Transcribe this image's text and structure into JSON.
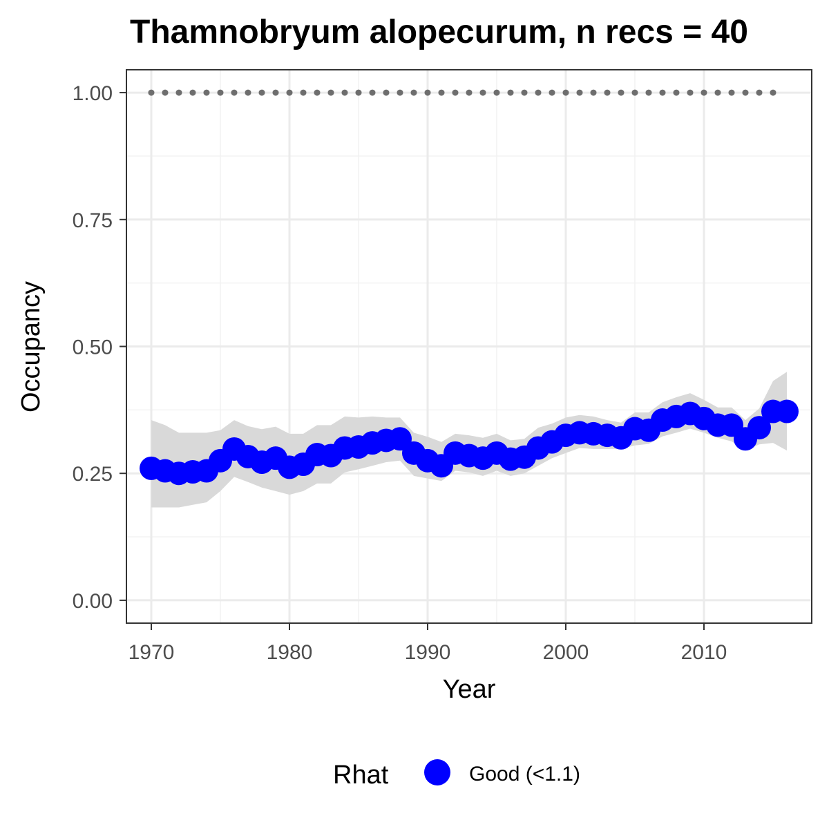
{
  "chart_data": {
    "type": "line",
    "title": "Thamnobryum alopecurum, n recs = 40",
    "xlabel": "Year",
    "ylabel": "Occupancy",
    "xlim": [
      1968.2,
      2017.8
    ],
    "ylim": [
      -0.045,
      1.045
    ],
    "x_ticks": [
      1970,
      1980,
      1990,
      2000,
      2010
    ],
    "x_tick_labels": [
      "1970",
      "1980",
      "1990",
      "2000",
      "2010"
    ],
    "y_ticks": [
      0,
      0.25,
      0.5,
      0.75,
      1.0
    ],
    "y_tick_labels": [
      "0.00",
      "0.25",
      "0.50",
      "0.75",
      "1.00"
    ],
    "grid": true,
    "legend": {
      "title": "Rhat",
      "position": "bottom",
      "entries": [
        {
          "label": "Good (<1.1)",
          "color": "#0000ff"
        }
      ]
    },
    "colors": {
      "point": "#0000ff",
      "ribbon": "#d9d9d9",
      "reference": "#6e6e6e"
    },
    "x": [
      1970,
      1971,
      1972,
      1973,
      1974,
      1975,
      1976,
      1977,
      1978,
      1979,
      1980,
      1981,
      1982,
      1983,
      1984,
      1985,
      1986,
      1987,
      1988,
      1989,
      1990,
      1991,
      1992,
      1993,
      1994,
      1995,
      1996,
      1997,
      1998,
      1999,
      2000,
      2001,
      2002,
      2003,
      2004,
      2005,
      2006,
      2007,
      2008,
      2009,
      2010,
      2011,
      2012,
      2013,
      2014,
      2015,
      2016
    ],
    "series": [
      {
        "name": "Good (<1.1)",
        "values": [
          0.26,
          0.255,
          0.25,
          0.253,
          0.255,
          0.275,
          0.298,
          0.283,
          0.272,
          0.28,
          0.262,
          0.268,
          0.287,
          0.285,
          0.3,
          0.302,
          0.31,
          0.315,
          0.318,
          0.29,
          0.275,
          0.265,
          0.29,
          0.285,
          0.28,
          0.29,
          0.278,
          0.282,
          0.3,
          0.312,
          0.325,
          0.33,
          0.328,
          0.325,
          0.32,
          0.338,
          0.335,
          0.355,
          0.362,
          0.368,
          0.358,
          0.345,
          0.345,
          0.318,
          0.34,
          0.372,
          0.372
        ],
        "lower": [
          0.183,
          0.183,
          0.183,
          0.188,
          0.193,
          0.215,
          0.243,
          0.233,
          0.222,
          0.215,
          0.208,
          0.215,
          0.23,
          0.23,
          0.252,
          0.258,
          0.265,
          0.272,
          0.275,
          0.245,
          0.24,
          0.235,
          0.255,
          0.252,
          0.245,
          0.255,
          0.245,
          0.25,
          0.265,
          0.28,
          0.29,
          0.3,
          0.298,
          0.298,
          0.298,
          0.305,
          0.308,
          0.323,
          0.33,
          0.338,
          0.33,
          0.32,
          0.313,
          0.295,
          0.307,
          0.31,
          0.295
        ],
        "upper": [
          0.355,
          0.345,
          0.33,
          0.33,
          0.33,
          0.335,
          0.355,
          0.343,
          0.337,
          0.342,
          0.328,
          0.328,
          0.345,
          0.345,
          0.362,
          0.36,
          0.362,
          0.36,
          0.36,
          0.33,
          0.322,
          0.312,
          0.328,
          0.325,
          0.32,
          0.328,
          0.315,
          0.318,
          0.34,
          0.348,
          0.36,
          0.365,
          0.362,
          0.355,
          0.35,
          0.37,
          0.37,
          0.39,
          0.4,
          0.408,
          0.395,
          0.38,
          0.38,
          0.355,
          0.378,
          0.432,
          0.45
        ]
      }
    ],
    "reference": {
      "x": [
        1970,
        1971,
        1972,
        1973,
        1974,
        1975,
        1976,
        1977,
        1978,
        1979,
        1980,
        1981,
        1982,
        1983,
        1984,
        1985,
        1986,
        1987,
        1988,
        1989,
        1990,
        1991,
        1992,
        1993,
        1994,
        1995,
        1996,
        1997,
        1998,
        1999,
        2000,
        2001,
        2002,
        2003,
        2004,
        2005,
        2006,
        2007,
        2008,
        2009,
        2010,
        2011,
        2012,
        2013,
        2014,
        2015
      ],
      "value": 1.0
    }
  }
}
